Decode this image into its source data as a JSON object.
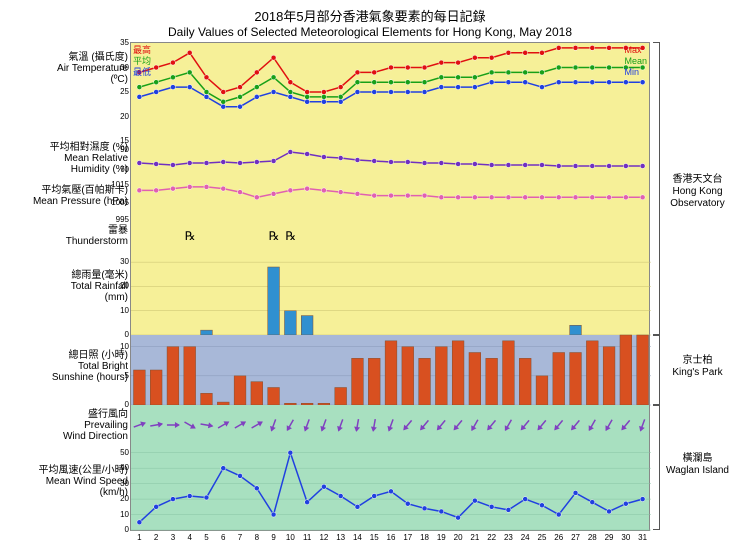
{
  "title_cn": "2018年5月部分香港氣象要素的每日記錄",
  "title_en": "Daily Values of Selected Meteorological Elements for Hong Kong, May 2018",
  "days": 31,
  "colors": {
    "max": "#e01010",
    "mean": "#18a018",
    "min": "#2040e0",
    "humidity": "#7030c0",
    "pressure": "#e060b0",
    "rain_bar": "#3090d0",
    "sun_bar": "#d85020",
    "wind": "#2040e0",
    "arrow": "#8040c0",
    "bg_top": "#f6f098",
    "bg_mid": "#a8b8d8",
    "bg_bot": "#a8e0c0"
  },
  "temp": {
    "ylim": [
      15,
      35
    ],
    "yticks": [
      15,
      20,
      25,
      30,
      35
    ],
    "label_cn": "氣溫 (攝氏度)",
    "label_en": "Air Temperature\n(ºC)",
    "max": [
      29,
      30,
      31,
      33,
      28,
      25,
      26,
      29,
      32,
      27,
      25,
      25,
      26,
      29,
      29,
      30,
      30,
      30,
      31,
      31,
      32,
      32,
      33,
      33,
      33,
      34,
      34,
      34,
      34,
      34,
      34
    ],
    "mean": [
      26,
      27,
      28,
      29,
      25,
      23,
      24,
      26,
      28,
      25,
      24,
      24,
      24,
      27,
      27,
      27,
      27,
      27,
      28,
      28,
      28,
      29,
      29,
      29,
      29,
      30,
      30,
      30,
      30,
      30,
      30
    ],
    "min": [
      24,
      25,
      26,
      26,
      24,
      22,
      22,
      24,
      25,
      24,
      23,
      23,
      23,
      25,
      25,
      25,
      25,
      25,
      26,
      26,
      26,
      27,
      27,
      27,
      26,
      27,
      27,
      27,
      27,
      27,
      27
    ],
    "key_cn": {
      "max": "最高",
      "mean": "平均",
      "min": "最低"
    },
    "key_en": {
      "max": "Max",
      "mean": "Mean",
      "min": "Min"
    }
  },
  "humidity": {
    "ylim": [
      60,
      100
    ],
    "yticks": [
      70,
      90
    ],
    "label_cn": "平均相對濕度 (%)",
    "label_en": "Mean Relative\nHumidity (%)",
    "v": [
      77,
      76,
      75,
      77,
      77,
      78,
      77,
      78,
      79,
      88,
      86,
      83,
      82,
      80,
      79,
      78,
      78,
      77,
      77,
      76,
      76,
      75,
      75,
      75,
      75,
      74,
      74,
      74,
      74,
      74,
      74
    ]
  },
  "pressure": {
    "ylim": [
      992,
      1018
    ],
    "yticks": [
      995,
      1005,
      1015
    ],
    "label_cn": "平均氣壓(百帕斯卡)",
    "label_en": "Mean Pressure (hPa)",
    "v": [
      1012,
      1012,
      1013,
      1014,
      1014,
      1013,
      1011,
      1008,
      1010,
      1012,
      1013,
      1012,
      1011,
      1010,
      1009,
      1009,
      1009,
      1009,
      1008,
      1008,
      1008,
      1008,
      1008,
      1008,
      1008,
      1008,
      1008,
      1008,
      1008,
      1008,
      1008
    ]
  },
  "thunder": {
    "label_cn": "雷暴",
    "label_en": "Thunderstorm",
    "symbol": "℞",
    "days": [
      4,
      9,
      10
    ]
  },
  "rain": {
    "ylim": [
      0,
      35
    ],
    "yticks": [
      0,
      10,
      20,
      30
    ],
    "label_cn": "總雨量(毫米)",
    "label_en": "Total Rainfall\n(mm)",
    "v": [
      0,
      0,
      0,
      0,
      2,
      0,
      0,
      0,
      28,
      10,
      8,
      0,
      0,
      0,
      0,
      0,
      0,
      0,
      0,
      0,
      0,
      0,
      0,
      0,
      0,
      0,
      4,
      0,
      0,
      0,
      0
    ]
  },
  "sun": {
    "ylim": [
      0,
      12
    ],
    "yticks": [
      0,
      5,
      10
    ],
    "label_cn": "總日照 (小時)",
    "label_en": "Total Bright\nSunshine (hours)",
    "v": [
      6,
      6,
      10,
      10,
      2,
      0.5,
      5,
      4,
      3,
      0.3,
      0.3,
      0.3,
      3,
      8,
      8,
      11,
      10,
      8,
      10,
      11,
      9,
      8,
      11,
      8,
      5,
      9,
      9,
      11,
      10,
      12,
      12
    ]
  },
  "winddir": {
    "label_cn": "盛行風向",
    "label_en": "Prevailing\nWind Direction",
    "deg": [
      70,
      80,
      90,
      120,
      100,
      60,
      60,
      60,
      200,
      210,
      200,
      200,
      200,
      190,
      190,
      200,
      220,
      220,
      220,
      220,
      210,
      220,
      210,
      220,
      220,
      220,
      220,
      210,
      210,
      220,
      200
    ]
  },
  "windspd": {
    "ylim": [
      0,
      55
    ],
    "yticks": [
      0,
      10,
      20,
      30,
      40,
      50
    ],
    "label_cn": "平均風速(公里/小時)",
    "label_en": "Mean Wind Speed\n(km/h)",
    "v": [
      5,
      15,
      20,
      22,
      21,
      40,
      35,
      27,
      10,
      50,
      18,
      28,
      22,
      15,
      22,
      25,
      17,
      14,
      12,
      8,
      19,
      15,
      13,
      20,
      16,
      10,
      24,
      18,
      12,
      17,
      20
    ]
  },
  "regions": {
    "hko_cn": "香港天文台",
    "hko_en": "Hong Kong\nObservatory",
    "kp_cn": "京士柏",
    "kp_en": "King's Park",
    "wi_cn": "橫瀾島",
    "wi_en": "Waglan Island"
  }
}
